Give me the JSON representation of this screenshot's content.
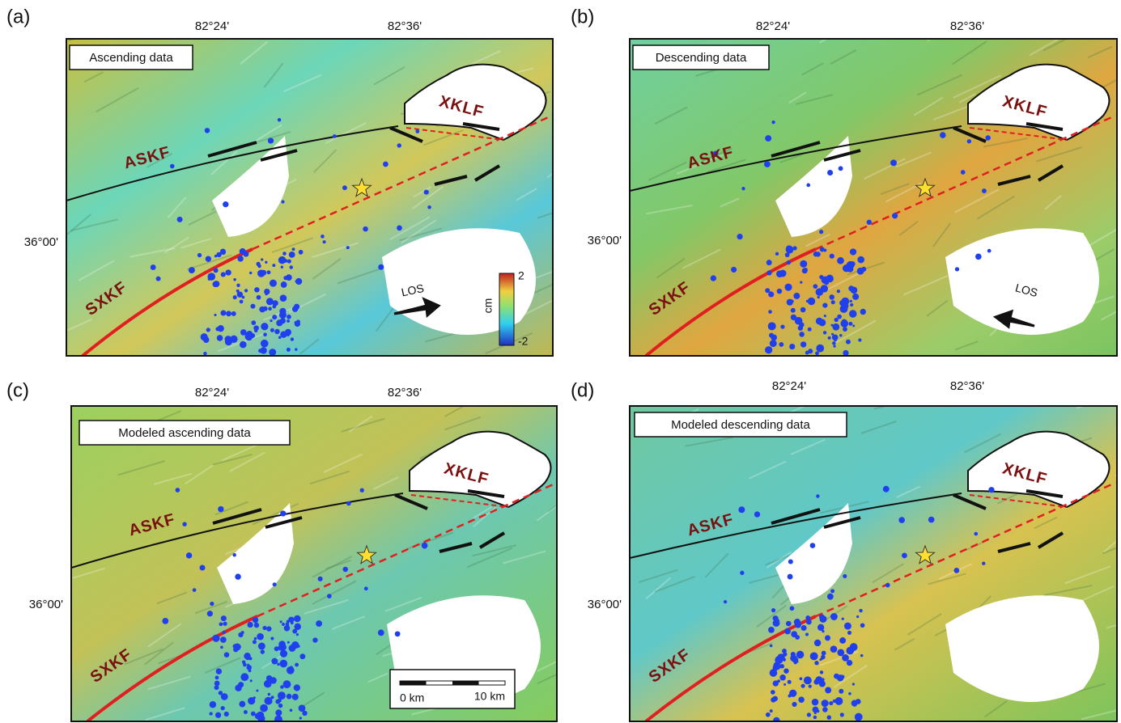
{
  "panels": [
    {
      "label": "(a)",
      "title": "Ascending data",
      "lon_ticks": [
        "82°24'",
        "82°36'"
      ],
      "lat_tick": "36°00'",
      "faults": [
        "ASKF",
        "XKLF",
        "SXKF"
      ],
      "los": "LOS"
    },
    {
      "label": "(b)",
      "title": "Descending data",
      "lon_ticks": [
        "82°24'",
        "82°36'"
      ],
      "lat_tick": "36°00'",
      "faults": [
        "ASKF",
        "XKLF",
        "SXKF"
      ],
      "los": "LOS"
    },
    {
      "label": "(c)",
      "title": "Modeled ascending data",
      "lon_ticks": [
        "82°24'",
        "82°36'"
      ],
      "lat_tick": "36°00'",
      "faults": [
        "ASKF",
        "XKLF",
        "SXKF"
      ]
    },
    {
      "label": "(d)",
      "title": "Modeled descending data",
      "lon_ticks": [
        "82°24'",
        "82°36'"
      ],
      "lat_tick": "36°00'",
      "faults": [
        "ASKF",
        "XKLF",
        "SXKF"
      ]
    }
  ],
  "colorbar": {
    "unit": "cm",
    "max_label": "2",
    "min_label": "-2"
  },
  "scale_bar": {
    "start_label": "0 km",
    "end_label": "10 km"
  }
}
